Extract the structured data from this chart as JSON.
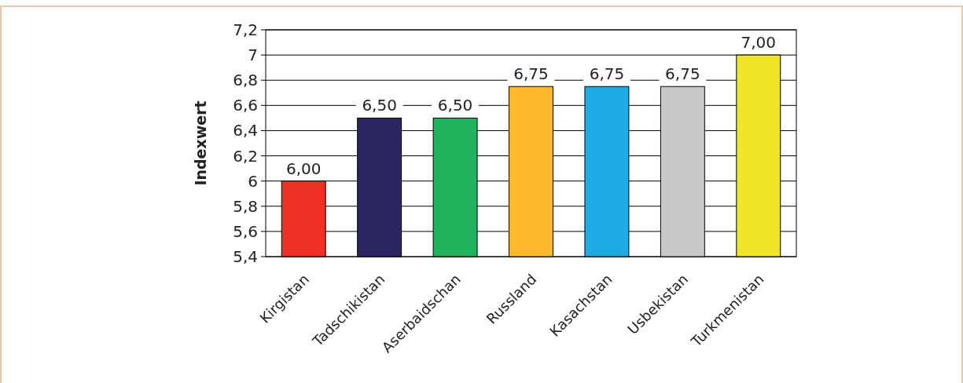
{
  "chart_data": {
    "type": "bar",
    "ylabel": "Indexwert",
    "categories": [
      "Kirgistan",
      "Tadschikistan",
      "Aserbaidschan",
      "Russland",
      "Kasachstan",
      "Usbekistan",
      "Turkmenistan"
    ],
    "values": [
      6.0,
      6.5,
      6.5,
      6.75,
      6.75,
      6.75,
      7.0
    ],
    "value_labels": [
      "6,00",
      "6,50",
      "6,50",
      "6,75",
      "6,75",
      "6,75",
      "7,00"
    ],
    "colors": [
      "#ee3124",
      "#2b2562",
      "#20b25c",
      "#fdb92a",
      "#1eaae2",
      "#c8c8c8",
      "#f0e626"
    ],
    "ylim": [
      5.4,
      7.2
    ],
    "yticks": [
      {
        "value": 5.4,
        "label": "5,4"
      },
      {
        "value": 5.6,
        "label": "5,6"
      },
      {
        "value": 5.8,
        "label": "5,8"
      },
      6,
      {
        "value": 6.2,
        "label": "6,2"
      },
      {
        "value": 6.4,
        "label": "6,4"
      },
      {
        "value": 6.6,
        "label": "6,6"
      },
      {
        "value": 6.8,
        "label": "6,8"
      },
      7,
      {
        "value": 7.2,
        "label": "7,2"
      }
    ],
    "grid": "y"
  }
}
